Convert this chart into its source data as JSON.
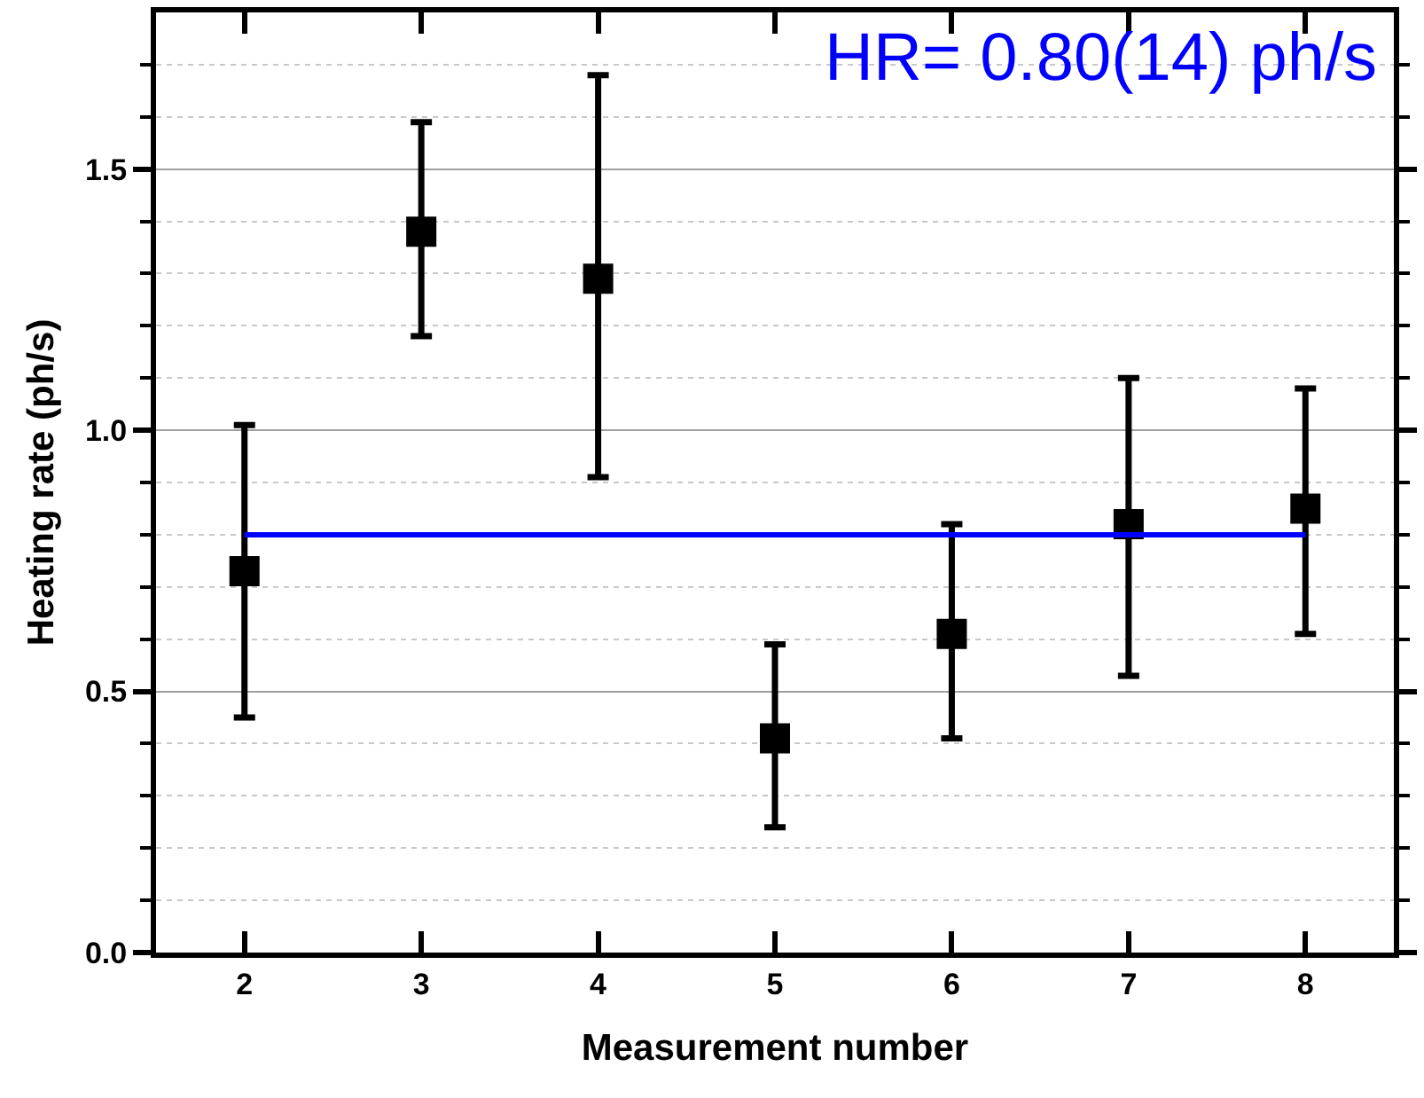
{
  "chart_data": {
    "type": "scatter",
    "xlabel": "Measurement number",
    "ylabel": "Heating rate (ph/s)",
    "x": [
      2,
      3,
      4,
      5,
      6,
      7,
      8
    ],
    "series": [
      {
        "color": "#000000",
        "marker": "square",
        "values": [
          0.73,
          1.38,
          1.29,
          0.41,
          0.61,
          0.82,
          0.85
        ],
        "errors": [
          [
            0.45,
            1.01
          ],
          [
            1.18,
            1.59
          ],
          [
            0.91,
            1.68
          ],
          [
            0.24,
            0.59
          ],
          [
            0.41,
            0.82
          ],
          [
            0.53,
            1.1
          ],
          [
            0.61,
            1.08
          ]
        ]
      },
      {
        "type": "line",
        "color": "#0000ff",
        "x": [
          2,
          8
        ],
        "values": [
          0.8,
          0.8
        ],
        "line_style": "solid",
        "marker": "none"
      }
    ],
    "annotations": [
      "HR= 0.80(14) ph/s"
    ],
    "xlim": [
      1.5,
      8.5
    ],
    "xticks": [
      2,
      3,
      4,
      5,
      6,
      7,
      8
    ],
    "ylim": [
      0,
      1.8
    ],
    "yticks": [
      {
        "value": 0.0,
        "label": "0.0"
      },
      {
        "value": 0.1,
        "label": null
      },
      {
        "value": 0.2,
        "label": null
      },
      {
        "value": 0.3,
        "label": null
      },
      {
        "value": 0.4,
        "label": null
      },
      {
        "value": 0.5,
        "label": "0.5"
      },
      {
        "value": 0.6,
        "label": null
      },
      {
        "value": 0.7,
        "label": null
      },
      {
        "value": 0.8,
        "label": null
      },
      {
        "value": 0.9,
        "label": null
      },
      {
        "value": 1.0,
        "label": "1.0"
      },
      {
        "value": 1.1,
        "label": null
      },
      {
        "value": 1.2,
        "label": null
      },
      {
        "value": 1.3,
        "label": null
      },
      {
        "value": 1.4,
        "label": null
      },
      {
        "value": 1.5,
        "label": "1.5"
      },
      {
        "value": 1.6,
        "label": null
      },
      {
        "value": 1.7,
        "label": null
      }
    ],
    "grid": "y"
  }
}
